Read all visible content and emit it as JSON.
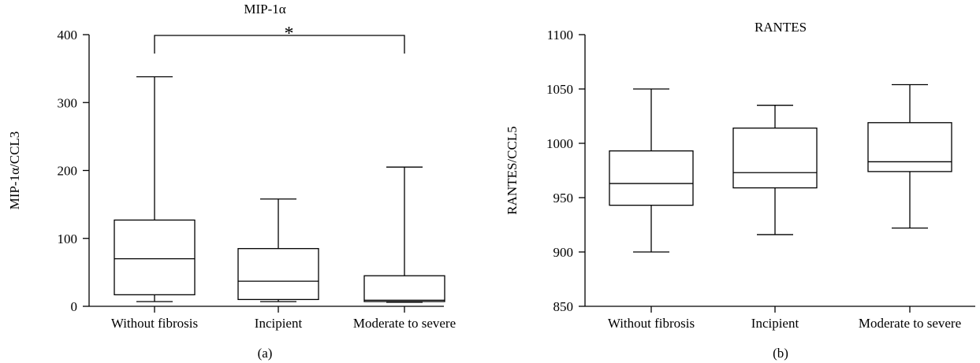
{
  "chart_data": [
    {
      "type": "box",
      "panel_label": "(a)",
      "title": "MIP-1α",
      "ylabel": "MIP-1α/CCL3",
      "ylim": [
        0,
        400
      ],
      "yticks": [
        0,
        100,
        200,
        300,
        400
      ],
      "categories": [
        "Without fibrosis",
        "Incipient",
        "Moderate to severe"
      ],
      "boxes": [
        {
          "min": 7,
          "q1": 17,
          "median": 70,
          "q3": 127,
          "max": 338
        },
        {
          "min": 7,
          "q1": 10,
          "median": 37,
          "q3": 85,
          "max": 158
        },
        {
          "min": 6,
          "q1": 7,
          "median": 9,
          "q3": 45,
          "max": 205
        }
      ],
      "significance": {
        "from": 0,
        "to": 2,
        "label": "*"
      }
    },
    {
      "type": "box",
      "panel_label": "(b)",
      "title": "RANTES",
      "ylabel": "RANTES/CCL5",
      "ylim": [
        850,
        1100
      ],
      "yticks": [
        850,
        900,
        950,
        1000,
        1050,
        1100
      ],
      "categories": [
        "Without fibrosis",
        "Incipient",
        "Moderate to severe"
      ],
      "boxes": [
        {
          "min": 900,
          "q1": 943,
          "median": 963,
          "q3": 993,
          "max": 1050
        },
        {
          "min": 916,
          "q1": 959,
          "median": 973,
          "q3": 1014,
          "max": 1035
        },
        {
          "min": 922,
          "q1": 974,
          "median": 983,
          "q3": 1019,
          "max": 1054
        }
      ]
    }
  ]
}
